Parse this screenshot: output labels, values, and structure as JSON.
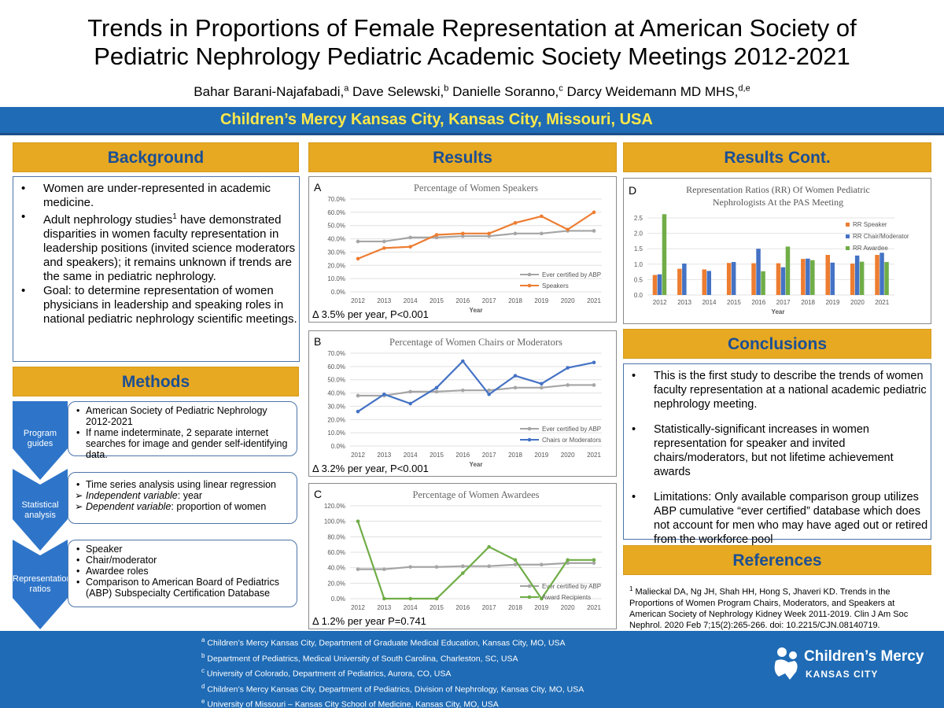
{
  "header": {
    "title_line1": "Trends in Proportions of Female Representation at American Society of",
    "title_line2": "Pediatric Nephrology Pediatric Academic Society Meetings 2012-2021",
    "authors": [
      {
        "name": "Bahar Barani-Najafabadi,",
        "sup": "a"
      },
      {
        "name": " Dave Selewski,",
        "sup": "b"
      },
      {
        "name": " Danielle Soranno,",
        "sup": "c"
      },
      {
        "name": " Darcy Weidemann MD MHS,",
        "sup": "d,e"
      }
    ],
    "institution": "Children’s Mercy Kansas City, Kansas City, Missouri, USA"
  },
  "background": {
    "heading": "Background",
    "bullets": [
      "Women are under-represented in academic medicine.",
      "Adult nephrology studies",
      "Goal: to determine representation of women physicians in leadership and speaking roles in national pediatric nephrology scientific meetings."
    ],
    "bullet2_sup": "1",
    "bullet2_rest": " have demonstrated disparities in women faculty representation in leadership positions (invited science moderators and speakers); it remains unknown if trends are the same in pediatric nephrology."
  },
  "methods": {
    "heading": "Methods",
    "steps": [
      {
        "label": "Program guides",
        "items": [
          "American Society of Pediatric Nephrology 2012-2021",
          "If name indeterminate, 2 separate internet searches for image and gender self-identifying data."
        ]
      },
      {
        "label": "Statistical analysis",
        "items": [
          "Time series analysis using linear regression"
        ],
        "arrow_items": [
          {
            "em": "Independent variable",
            "rest": ": year"
          },
          {
            "em": "Dependent variable",
            "rest": ": proportion of women"
          }
        ]
      },
      {
        "label": "Representation ratios",
        "items": [
          "Speaker",
          "Chair/moderator",
          "Awardee roles",
          "Comparison to American Board of Pediatrics (ABP) Subspecialty Certification Database"
        ]
      }
    ]
  },
  "results": {
    "heading": "Results"
  },
  "results_cont": {
    "heading": "Results Cont."
  },
  "conclusions": {
    "heading": "Conclusions",
    "bullets": [
      "This is the first study to describe the trends of women faculty representation at a national academic pediatric nephrology meeting.",
      "Statistically-significant increases in women representation for speaker and invited chairs/moderators, but not lifetime achievement awards",
      "Limitations: Only available comparison group utilizes ABP cumulative “ever certified” database which does not account for men who may have aged out or retired from the workforce pool"
    ]
  },
  "references": {
    "heading": "References",
    "sup": "1",
    "text": " Malieckal DA, Ng JH, Shah HH, Hong S, Jhaveri KD. Trends in the Proportions of Women Program Chairs, Moderators, and Speakers at American Society of Nephrology Kidney Week 2011-2019. Clin J Am Soc Nephrol. 2020 Feb 7;15(2):265-266. doi: 10.2215/CJN.08140719."
  },
  "footnotes": [
    {
      "sup": "a",
      "text": " Children’s Mercy Kansas City, Department of Graduate Medical Education, Kansas City, MO, USA"
    },
    {
      "sup": "b",
      "text": " Department of Pediatrics, Medical University of South Carolina, Charleston, SC, USA"
    },
    {
      "sup": "c",
      "text": " University of Colorado, Department of Pediatrics, Aurora, CO, USA"
    },
    {
      "sup": "d",
      "text": " Children’s Mercy Kansas City, Department of Pediatrics, Division of Nephrology, Kansas City, MO, USA"
    },
    {
      "sup": "e",
      "text": " University of Missouri – Kansas City School of Medicine, Kansas City, MO, USA"
    }
  ],
  "logo": {
    "name": "Children’s Mercy",
    "sub": "KANSAS CITY",
    "icon": "childrens-mercy-logo-icon"
  },
  "colors": {
    "blue_bar": "#1f6bb5",
    "gold": "#e7a922",
    "gray_series": "#a5a5a5",
    "orange_series": "#ed7d31",
    "blue_series": "#4472c4",
    "green_series": "#70ad47",
    "yellow_text": "#ffe84a"
  },
  "chart_data": [
    {
      "id": "A",
      "type": "line",
      "title": "Percentage of Women Speakers",
      "xlabel": "Year",
      "x": [
        "2012",
        "2013",
        "2014",
        "2015",
        "2016",
        "2017",
        "2018",
        "2019",
        "2020",
        "2021"
      ],
      "ylim": [
        0,
        70
      ],
      "yticks": [
        "0.0%",
        "10.0%",
        "20.0%",
        "30.0%",
        "40.0%",
        "50.0%",
        "60.0%",
        "70.0%"
      ],
      "series": [
        {
          "name": "Ever certified by ABP",
          "color": "#a5a5a5",
          "values": [
            38,
            38,
            41,
            41,
            42,
            42,
            44,
            44,
            46,
            46
          ]
        },
        {
          "name": "Speakers",
          "color": "#ed7d31",
          "values": [
            25,
            33,
            34,
            43,
            44,
            44,
            52,
            57,
            47,
            60
          ]
        }
      ],
      "note": "Δ 3.5% per year, P<0.001",
      "legend": "bottom-right"
    },
    {
      "id": "B",
      "type": "line",
      "title": "Percentage of Women Chairs or Moderators",
      "xlabel": "Year",
      "x": [
        "2012",
        "2013",
        "2014",
        "2015",
        "2016",
        "2017",
        "2018",
        "2019",
        "2020",
        "2021"
      ],
      "ylim": [
        0,
        70
      ],
      "yticks": [
        "0.0%",
        "10.0%",
        "20.0%",
        "30.0%",
        "40.0%",
        "50.0%",
        "60.0%",
        "70.0%"
      ],
      "series": [
        {
          "name": "Ever certified by ABP",
          "color": "#a5a5a5",
          "values": [
            38,
            38,
            41,
            41,
            42,
            42,
            44,
            44,
            46,
            46
          ]
        },
        {
          "name": "Chairs or Moderators",
          "color": "#4472c4",
          "values": [
            26,
            39,
            32,
            44,
            64,
            39,
            53,
            47,
            59,
            63
          ]
        }
      ],
      "note": "Δ 3.2% per year, P<0.001",
      "legend": "bottom-right"
    },
    {
      "id": "C",
      "type": "line",
      "title": "Percentage of Women Awardees",
      "xlabel": "",
      "x": [
        "2012",
        "2013",
        "2014",
        "2015",
        "2016",
        "2017",
        "2018",
        "2019",
        "2020",
        "2021"
      ],
      "ylim": [
        0,
        120
      ],
      "yticks": [
        "0.0%",
        "20.0%",
        "40.0%",
        "60.0%",
        "80.0%",
        "100.0%",
        "120.0%"
      ],
      "series": [
        {
          "name": "Ever certified by ABP",
          "color": "#a5a5a5",
          "values": [
            38,
            38,
            41,
            41,
            42,
            42,
            44,
            44,
            46,
            46
          ]
        },
        {
          "name": "Award Recipients",
          "color": "#70ad47",
          "values": [
            100,
            0,
            0,
            0,
            33,
            67,
            50,
            0,
            50,
            50
          ]
        }
      ],
      "note": "Δ 1.2% per year P=0.741",
      "legend": "bottom-right"
    },
    {
      "id": "D",
      "type": "bar",
      "title_line1": "Representation Ratios (RR) Of Women Pediatric",
      "title_line2": "Nephrologists At the PAS Meeting",
      "xlabel": "Year",
      "categories": [
        "2012",
        "2013",
        "2014",
        "2015",
        "2016",
        "2017",
        "2018",
        "2019",
        "2020",
        "2021"
      ],
      "ylim": [
        0,
        2.5
      ],
      "yticks": [
        "0.0",
        "0.5",
        "1.0",
        "1.5",
        "2.0",
        "2.5"
      ],
      "series": [
        {
          "name": "RR Speaker",
          "color": "#ed7d31",
          "values": [
            0.65,
            0.85,
            0.83,
            1.04,
            1.03,
            1.03,
            1.17,
            1.3,
            1.02,
            1.3
          ]
        },
        {
          "name": "RR Chair/Moderator",
          "color": "#4472c4",
          "values": [
            0.67,
            1.02,
            0.78,
            1.07,
            1.5,
            0.9,
            1.18,
            1.05,
            1.28,
            1.37
          ]
        },
        {
          "name": "RR Awardee",
          "color": "#70ad47",
          "values": [
            2.62,
            0,
            0,
            0,
            0.77,
            1.57,
            1.13,
            0,
            1.08,
            1.07
          ]
        }
      ],
      "legend": "right"
    }
  ]
}
